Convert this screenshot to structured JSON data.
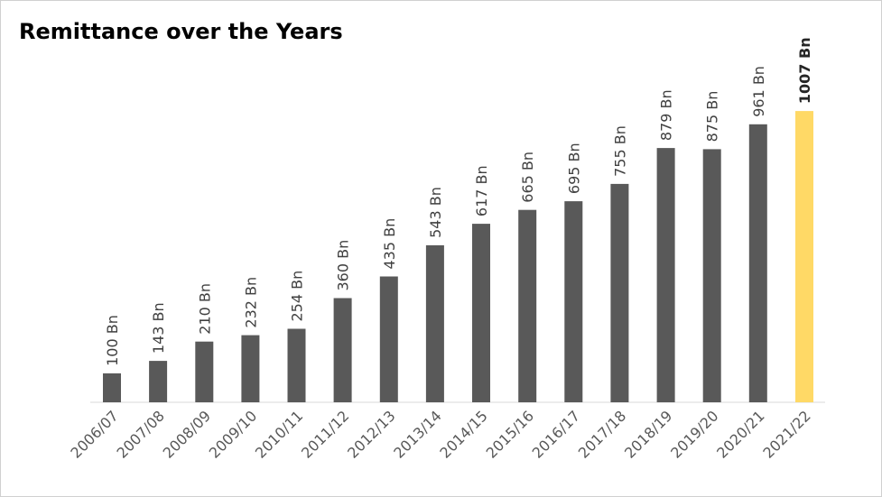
{
  "chart_data": {
    "type": "bar",
    "title": "Remittance over the Years",
    "xlabel": "",
    "ylabel": "",
    "categories": [
      "2006/07",
      "2007/08",
      "2008/09",
      "2009/10",
      "2010/11",
      "2011/12",
      "2012/13",
      "2013/14",
      "2014/15",
      "2015/16",
      "2016/17",
      "2017/18",
      "2018/19",
      "2019/20",
      "2020/21",
      "2021/22"
    ],
    "values": [
      100,
      143,
      210,
      232,
      254,
      360,
      435,
      543,
      617,
      665,
      695,
      755,
      879,
      875,
      961,
      1007
    ],
    "data_labels": [
      "100 Bn",
      "143 Bn",
      "210 Bn",
      "232 Bn",
      "254 Bn",
      "360 Bn",
      "435 Bn",
      "543 Bn",
      "617 Bn",
      "665 Bn",
      "695 Bn",
      "755 Bn",
      "879 Bn",
      "875 Bn",
      "961 Bn",
      "1007 Bn"
    ],
    "highlight_index": 15,
    "bar_color": "#595959",
    "highlight_color": "#FFD966",
    "ylim": [
      0,
      1007
    ],
    "grid": false,
    "legend": "none"
  }
}
